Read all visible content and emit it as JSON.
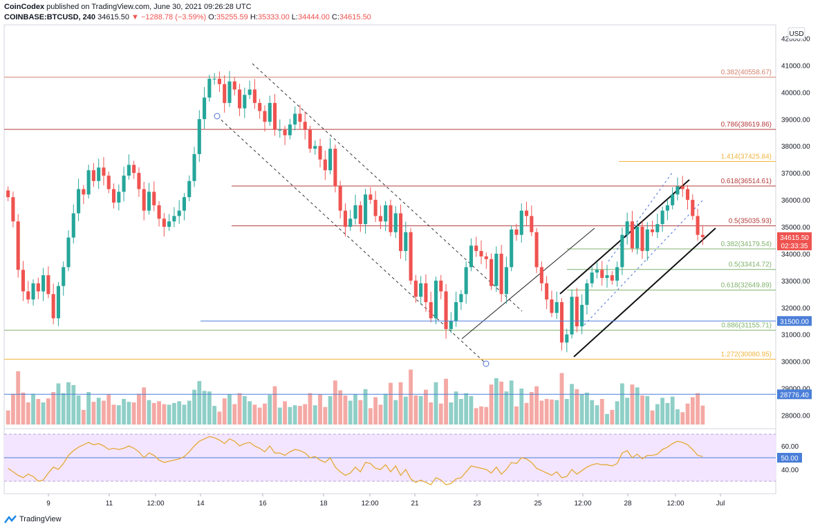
{
  "header": {
    "publisher": "CoinCodex",
    "published_text": "published on TradingView.com, June 30, 2021 09:26:28 UTC",
    "symbol": "COINBASE:BTCUSD, 240",
    "last": "34615.50",
    "change": "▼ −1288.78 (−3.59%)",
    "o_label": "O:",
    "o_val": "35255.59",
    "h_label": "H:",
    "h_val": "35333.00",
    "l_label": "L:",
    "l_val": "34444.00",
    "c_label": "C:",
    "c_val": "34615.50"
  },
  "footer": {
    "brand": "TradingView"
  },
  "colors": {
    "up": "#26a69a",
    "down": "#ef5350",
    "rsi_line": "#e5a935",
    "rsi_band": "#f3e5ff",
    "volume_up": "#8fcfc7",
    "volume_down": "#f4a9a5"
  },
  "chart_data": {
    "type": "candlestick",
    "currency_label": "USD",
    "ylim": [
      27500,
      42500
    ],
    "y_ticks": [
      "42000.00",
      "41000.00",
      "40000.00",
      "39000.00",
      "38000.00",
      "37000.00",
      "36000.00",
      "35000.00",
      "34000.00",
      "33000.00",
      "32000.00",
      "31000.00",
      "30000.00",
      "29000.00",
      "28000.00"
    ],
    "x_ticks": [
      "9",
      "11",
      "12:00",
      "14",
      "16",
      "18",
      "12:00",
      "21",
      "23",
      "25",
      "12:00",
      "28",
      "12:00",
      "Jul"
    ],
    "closes": [
      36100,
      35200,
      33400,
      32600,
      32300,
      32900,
      32600,
      33200,
      32500,
      31600,
      32800,
      33500,
      34600,
      35500,
      36400,
      36200,
      37100,
      36700,
      37200,
      36900,
      36400,
      35900,
      36300,
      36900,
      37300,
      37000,
      36400,
      35600,
      36300,
      35800,
      35300,
      35000,
      35200,
      35400,
      35600,
      36100,
      36700,
      37700,
      39000,
      39800,
      40500,
      40500,
      40300,
      39600,
      40400,
      40100,
      39400,
      39900,
      40100,
      39600,
      39300,
      38900,
      39600,
      38600,
      38600,
      38400,
      38800,
      39200,
      38900,
      38600,
      37900,
      38000,
      37500,
      37100,
      37900,
      36500,
      35600,
      35000,
      35300,
      35800,
      35100,
      36200,
      36000,
      35400,
      35200,
      35800,
      34800,
      35500,
      34100,
      34800,
      33000,
      32400,
      32900,
      32200,
      31600,
      33000,
      32600,
      31200,
      31500,
      32200,
      32500,
      33500,
      34300,
      34100,
      33900,
      33800,
      32800,
      34000,
      32500,
      33500,
      34900,
      34700,
      35600,
      35400,
      34800,
      33500,
      32900,
      32300,
      31800,
      32200,
      30700,
      31000,
      32400,
      31300,
      32100,
      32900,
      33300,
      33400,
      33100,
      33200,
      33000,
      33500,
      34700,
      35200,
      34200,
      35000,
      34100,
      34900,
      34800,
      35100,
      35600,
      35800,
      36200,
      36500,
      36400,
      36000,
      35400,
      34700,
      34615
    ],
    "rsi": {
      "ticks": [
        "60.00",
        "40.00"
      ],
      "reference_label": "50.00",
      "values": [
        41,
        38,
        35,
        33,
        36,
        34,
        30,
        31,
        37,
        42,
        40,
        45,
        52,
        56,
        59,
        61,
        63,
        61,
        62,
        60,
        57,
        58,
        57,
        58,
        60,
        58,
        55,
        50,
        54,
        52,
        48,
        46,
        47,
        48,
        49,
        51,
        55,
        60,
        64,
        66,
        68,
        67,
        65,
        62,
        66,
        64,
        60,
        62,
        63,
        60,
        58,
        55,
        60,
        54,
        54,
        52,
        55,
        57,
        56,
        54,
        50,
        51,
        48,
        46,
        50,
        42,
        38,
        35,
        37,
        42,
        38,
        46,
        45,
        41,
        40,
        44,
        38,
        43,
        35,
        40,
        32,
        29,
        31,
        29,
        27,
        33,
        31,
        27,
        28,
        32,
        33,
        38,
        43,
        42,
        41,
        40,
        37,
        42,
        36,
        40,
        46,
        45,
        50,
        49,
        46,
        41,
        39,
        37,
        35,
        38,
        33,
        34,
        40,
        36,
        39,
        42,
        44,
        45,
        44,
        44,
        43,
        45,
        54,
        56,
        50,
        53,
        49,
        52,
        52,
        53,
        57,
        59,
        62,
        64,
        63,
        61,
        57,
        52,
        51
      ]
    },
    "price_levels": [
      {
        "label": "0.382(40558.67)",
        "value": 40558.67,
        "color": "#d3806b"
      },
      {
        "label": "0.786(38619.86)",
        "value": 38619.86,
        "color": "#b53b3b"
      },
      {
        "label": "1.414(37425.84)",
        "value": 37425.84,
        "color": "#f0b53e"
      },
      {
        "label": "0.618(36514.61)",
        "value": 36514.61,
        "color": "#b53b3b"
      },
      {
        "label": "0.5(35035.93)",
        "value": 35035.93,
        "color": "#b53b3b"
      },
      {
        "label": "0.382(34179.54)",
        "value": 34179.54,
        "color": "#7fb36b"
      },
      {
        "label": "0.5(33414.72)",
        "value": 33414.72,
        "color": "#7fb36b"
      },
      {
        "label": "0.618(32649.89)",
        "value": 32649.89,
        "color": "#7fb36b"
      },
      {
        "label": "0.886(31155.71)",
        "value": 31155.71,
        "color": "#7fb36b"
      },
      {
        "label": "1.272(30080.95)",
        "value": 30080.95,
        "color": "#f0b53e"
      }
    ],
    "badges": [
      {
        "label": "34615.50",
        "sub": "02:33:35",
        "value": 34615.5,
        "color": "#ef5350"
      },
      {
        "label": "31500.00",
        "value": 31500,
        "color": "#4a7ed8"
      },
      {
        "label": "28776.40",
        "value": 28776.4,
        "color": "#4a7ed8"
      }
    ]
  }
}
